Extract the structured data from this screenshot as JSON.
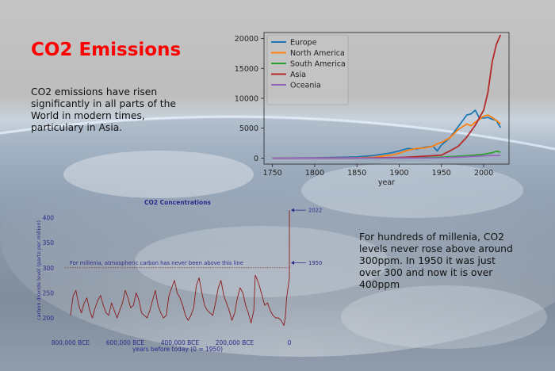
{
  "slide": {
    "title": "CO2 Emissions",
    "paragraph_1": "CO2 emissions have risen significantly in all parts of the World in modern times, particulary in Asia.",
    "paragraph_2": "For hundreds of millenia, CO2 levels never rose above around 300ppm. In 1950 it was just over 300 and now it is over 400ppm"
  },
  "chart_data": [
    {
      "type": "line",
      "xlabel": "year",
      "ylabel": "",
      "xlim": [
        1740,
        2030
      ],
      "ylim": [
        -1000,
        21000
      ],
      "xticks": [
        1750,
        1800,
        1850,
        1900,
        1950,
        2000
      ],
      "yticks": [
        0,
        5000,
        10000,
        15000,
        20000
      ],
      "legend": "top-left",
      "series": [
        {
          "name": "Europe",
          "color": "#1f77b4",
          "x": [
            1750,
            1800,
            1850,
            1870,
            1890,
            1900,
            1910,
            1920,
            1930,
            1940,
            1945,
            1950,
            1960,
            1970,
            1980,
            1985,
            1990,
            1995,
            2000,
            2005,
            2010,
            2015,
            2020
          ],
          "y": [
            10,
            40,
            200,
            450,
            850,
            1200,
            1600,
            1500,
            1800,
            2000,
            1200,
            2200,
            3400,
            5300,
            7200,
            7400,
            8000,
            6700,
            6700,
            6800,
            6500,
            6300,
            5100
          ]
        },
        {
          "name": "North America",
          "color": "#ff7f0e",
          "x": [
            1750,
            1800,
            1850,
            1870,
            1890,
            1900,
            1910,
            1920,
            1930,
            1940,
            1945,
            1950,
            1960,
            1970,
            1980,
            1985,
            1990,
            1995,
            2000,
            2005,
            2010,
            2015,
            2020
          ],
          "y": [
            0,
            5,
            40,
            150,
            500,
            800,
            1300,
            1600,
            1700,
            2000,
            2400,
            2600,
            3400,
            4800,
            5700,
            5400,
            6000,
            6500,
            7000,
            7200,
            6800,
            6300,
            5700
          ]
        },
        {
          "name": "South America",
          "color": "#2ca02c",
          "x": [
            1750,
            1850,
            1900,
            1920,
            1950,
            1970,
            1990,
            2000,
            2010,
            2015,
            2020
          ],
          "y": [
            0,
            5,
            20,
            50,
            150,
            300,
            500,
            650,
            900,
            1150,
            1000
          ]
        },
        {
          "name": "Asia",
          "color": "#b22a2a",
          "x": [
            1750,
            1850,
            1900,
            1920,
            1940,
            1950,
            1960,
            1970,
            1980,
            1990,
            2000,
            2005,
            2010,
            2015,
            2020
          ],
          "y": [
            0,
            20,
            100,
            250,
            400,
            500,
            1200,
            2000,
            3500,
            5500,
            8000,
            11000,
            16000,
            19000,
            20600
          ]
        },
        {
          "name": "Oceania",
          "color": "#9467bd",
          "x": [
            1750,
            1850,
            1900,
            1950,
            1970,
            1990,
            2000,
            2010,
            2015,
            2020
          ],
          "y": [
            0,
            2,
            10,
            50,
            150,
            300,
            380,
            450,
            450,
            440
          ]
        }
      ]
    },
    {
      "type": "line",
      "title": "CO2 Concentrations",
      "xlabel": "years before today (0 = 1950)",
      "ylabel": "carbon dioxide level (parts per million)",
      "xlim": [
        -820000,
        0
      ],
      "ylim": [
        170,
        420
      ],
      "xtick_labels": [
        "800,000 BCE",
        "600,000 BCE",
        "400,000 BCE",
        "200,000 BCE",
        "0"
      ],
      "xticks": [
        -800000,
        -600000,
        -400000,
        -200000,
        0
      ],
      "yticks": [
        200,
        250,
        300,
        350,
        400
      ],
      "color": "#8b1a1a",
      "annotations": [
        {
          "text": "For millenia, atmospheric carbon has never been above this line",
          "y": 300
        },
        {
          "text": "2022",
          "y": 415
        },
        {
          "text": "1950",
          "y": 310
        }
      ],
      "series": [
        {
          "x": [
            -800000,
            -790000,
            -780000,
            -770000,
            -760000,
            -750000,
            -740000,
            -730000,
            -720000,
            -710000,
            -700000,
            -690000,
            -680000,
            -670000,
            -660000,
            -650000,
            -640000,
            -630000,
            -620000,
            -610000,
            -600000,
            -590000,
            -580000,
            -570000,
            -560000,
            -550000,
            -540000,
            -530000,
            -520000,
            -510000,
            -500000,
            -490000,
            -480000,
            -470000,
            -460000,
            -450000,
            -440000,
            -430000,
            -420000,
            -410000,
            -400000,
            -390000,
            -380000,
            -370000,
            -360000,
            -350000,
            -340000,
            -330000,
            -320000,
            -310000,
            -300000,
            -290000,
            -280000,
            -270000,
            -260000,
            -250000,
            -240000,
            -230000,
            -220000,
            -210000,
            -200000,
            -190000,
            -180000,
            -170000,
            -160000,
            -150000,
            -140000,
            -130000,
            -125000,
            -120000,
            -110000,
            -100000,
            -90000,
            -80000,
            -70000,
            -60000,
            -50000,
            -40000,
            -30000,
            -20000,
            -15000,
            -10000,
            -5000,
            0
          ],
          "y": [
            205,
            245,
            255,
            225,
            210,
            230,
            240,
            215,
            200,
            220,
            235,
            245,
            225,
            210,
            205,
            230,
            215,
            200,
            215,
            230,
            255,
            240,
            220,
            225,
            250,
            235,
            210,
            205,
            200,
            215,
            235,
            255,
            225,
            210,
            200,
            205,
            245,
            260,
            275,
            250,
            240,
            225,
            205,
            195,
            205,
            220,
            265,
            280,
            250,
            225,
            215,
            210,
            205,
            230,
            260,
            275,
            245,
            230,
            215,
            195,
            210,
            240,
            260,
            250,
            225,
            210,
            190,
            215,
            285,
            280,
            265,
            245,
            225,
            230,
            215,
            205,
            200,
            200,
            195,
            185,
            200,
            240,
            260,
            280
          ]
        }
      ]
    }
  ]
}
